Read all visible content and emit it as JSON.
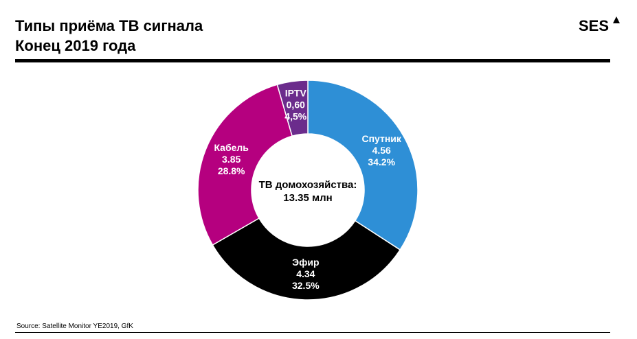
{
  "title": {
    "line1": "Типы приёма ТВ сигнала",
    "line2": "Конец 2019 года"
  },
  "logo": {
    "text": "SES",
    "icon": "triangle-icon"
  },
  "source": "Source: Satellite Monitor YE2019, GfK",
  "chart_data": {
    "type": "pie",
    "variant": "donut",
    "center_label": {
      "line1": "ТВ домохозяйства:",
      "line2": "13.35 млн"
    },
    "slices": [
      {
        "name": "Спутник",
        "value": 4.56,
        "value_label": "4.56",
        "percent_label": "34.2%",
        "color": "#2E8FD6"
      },
      {
        "name": "Эфир",
        "value": 4.34,
        "value_label": "4.34",
        "percent_label": "32.5%",
        "color": "#000000"
      },
      {
        "name": "Кабель",
        "value": 3.85,
        "value_label": "3.85",
        "percent_label": "28.8%",
        "color": "#B5007F"
      },
      {
        "name": "IPTV",
        "value": 0.6,
        "value_label": "0,60",
        "percent_label": "4,5%",
        "color": "#6B2C8C"
      }
    ]
  }
}
